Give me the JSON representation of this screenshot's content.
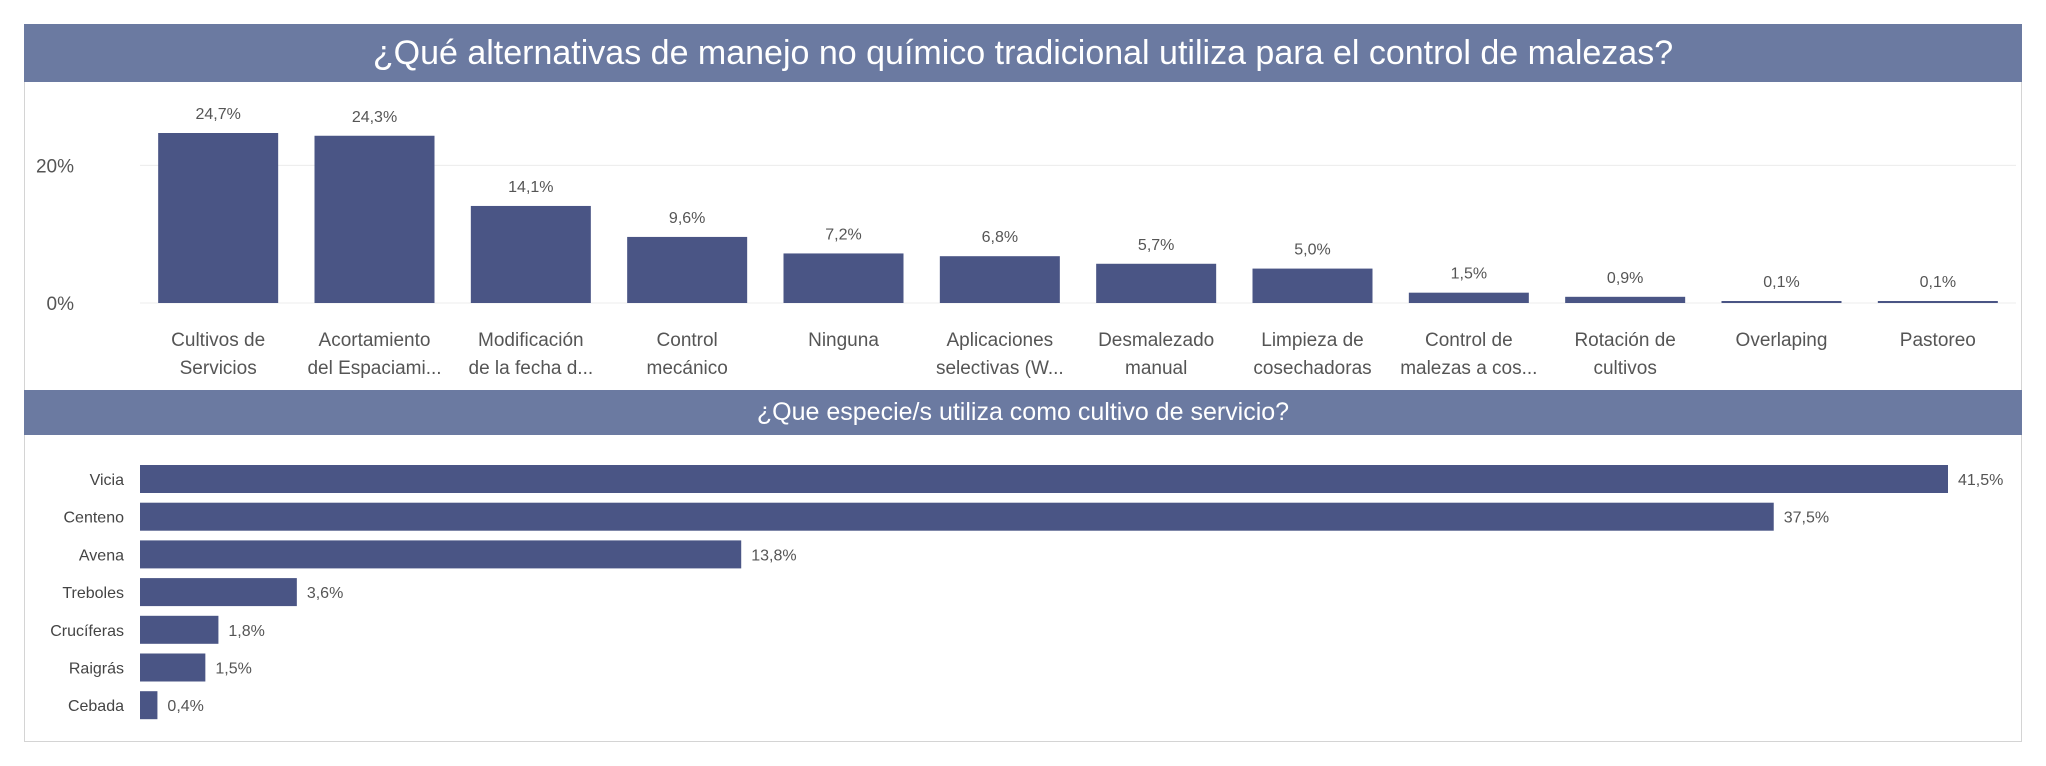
{
  "colors": {
    "bar": "#4a5585",
    "banner": "#6b7aa1",
    "grid": "#ececec",
    "text": "#555555",
    "label": "#444444"
  },
  "chart_data": [
    {
      "type": "bar",
      "title": "¿Qué alternativas de manejo no químico tradicional utiliza para el control de malezas?",
      "categories": [
        [
          "Cultivos de",
          "Servicios"
        ],
        [
          "Acortamiento",
          "del Espaciami..."
        ],
        [
          "Modificación",
          "de la fecha d..."
        ],
        [
          "Control",
          "mecánico"
        ],
        [
          "Ninguna"
        ],
        [
          "Aplicaciones",
          "selectivas (W..."
        ],
        [
          "Desmalezado",
          "manual"
        ],
        [
          "Limpieza de",
          "cosechadoras"
        ],
        [
          "Control de",
          "malezas a cos..."
        ],
        [
          "Rotación de",
          "cultivos"
        ],
        [
          "Overlaping"
        ],
        [
          "Pastoreo"
        ]
      ],
      "values": [
        24.7,
        24.3,
        14.1,
        9.6,
        7.2,
        6.8,
        5.7,
        5.0,
        1.5,
        0.9,
        0.1,
        0.1
      ],
      "value_labels": [
        "24,7%",
        "24,3%",
        "14,1%",
        "9,6%",
        "7,2%",
        "6,8%",
        "5,7%",
        "5,0%",
        "1,5%",
        "0,9%",
        "0,1%",
        "0,1%"
      ],
      "yticks": [
        0,
        20
      ],
      "ytick_labels": [
        "0%",
        "20%"
      ],
      "ylim": [
        0,
        24.7
      ],
      "grid": true
    },
    {
      "type": "bar",
      "orientation": "horizontal",
      "title": "¿Que especie/s utiliza como cultivo de servicio?",
      "categories": [
        "Vicia",
        "Centeno",
        "Avena",
        "Treboles",
        "Crucíferas",
        "Raigrás",
        "Cebada"
      ],
      "values": [
        41.5,
        37.5,
        13.8,
        3.6,
        1.8,
        1.5,
        0.4
      ],
      "value_labels": [
        "41,5%",
        "37,5%",
        "13,8%",
        "3,6%",
        "1,8%",
        "1,5%",
        "0,4%"
      ],
      "xlim": [
        0,
        41.5
      ]
    }
  ]
}
